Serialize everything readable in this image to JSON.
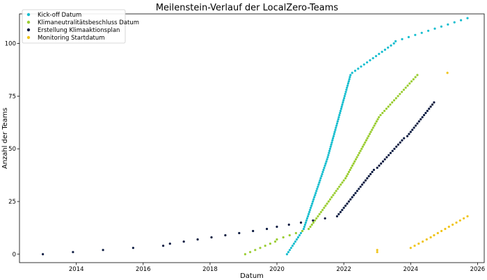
{
  "chart_data": {
    "type": "scatter",
    "title": "Meilenstein-Verlauf der LocalZero-Teams",
    "xlabel": "Datum",
    "ylabel": "Anzahl der Teams",
    "xlim": [
      2012.3,
      2026.2
    ],
    "ylim": [
      -4,
      114
    ],
    "x_ticks": [
      2014,
      2016,
      2018,
      2020,
      2022,
      2024,
      2026
    ],
    "y_ticks": [
      0,
      25,
      50,
      75,
      100
    ],
    "legend_position": "top-left",
    "series": [
      {
        "name": "Kick-off Datum",
        "color": "#17becf",
        "segments": [
          {
            "x0": 2020.3,
            "y0": 0,
            "x1": 2020.8,
            "y1": 12,
            "n": 13
          },
          {
            "x0": 2020.82,
            "y0": 13,
            "x1": 2021.5,
            "y1": 45,
            "n": 33
          },
          {
            "x0": 2021.52,
            "y0": 46,
            "x1": 2022.2,
            "y1": 85,
            "n": 40
          },
          {
            "x0": 2022.25,
            "y0": 86,
            "x1": 2023.5,
            "y1": 100,
            "n": 15
          },
          {
            "x0": 2023.55,
            "y0": 101,
            "x1": 2025.7,
            "y1": 112,
            "n": 12
          }
        ]
      },
      {
        "name": "Klimaneutralitätsbeschluss Datum",
        "color": "#9acd32",
        "segments": [
          {
            "x0": 2019.05,
            "y0": 0,
            "x1": 2019.95,
            "y1": 6,
            "n": 7
          },
          {
            "x0": 2020.0,
            "y0": 7,
            "x1": 2020.95,
            "y1": 12,
            "n": 6
          },
          {
            "x0": 2021.0,
            "y0": 13,
            "x1": 2022.0,
            "y1": 35,
            "n": 23
          },
          {
            "x0": 2022.05,
            "y0": 36,
            "x1": 2023.05,
            "y1": 65,
            "n": 30
          },
          {
            "x0": 2023.1,
            "y0": 66,
            "x1": 2024.2,
            "y1": 85,
            "n": 20
          }
        ]
      },
      {
        "name": "Erstellung Klimaaktionsplan",
        "color": "#0b1a40",
        "segments": [
          {
            "x0": 2013.0,
            "y0": 0,
            "x1": 2016.6,
            "y1": 4,
            "n": 5
          },
          {
            "x0": 2016.8,
            "y0": 5,
            "x1": 2019.7,
            "y1": 12,
            "n": 8
          },
          {
            "x0": 2020.0,
            "y0": 13,
            "x1": 2021.8,
            "y1": 18,
            "n": 6
          },
          {
            "x0": 2021.85,
            "y0": 19,
            "x1": 2022.9,
            "y1": 40,
            "n": 22
          },
          {
            "x0": 2023.0,
            "y0": 41,
            "x1": 2023.8,
            "y1": 55,
            "n": 15
          },
          {
            "x0": 2023.9,
            "y0": 56,
            "x1": 2024.7,
            "y1": 72,
            "n": 17
          }
        ]
      },
      {
        "name": "Monitoring Startdatum",
        "color": "#f0c419",
        "segments": [
          {
            "x0": 2023.0,
            "y0": 1,
            "x1": 2023.0,
            "y1": 2,
            "n": 2
          },
          {
            "x0": 2024.0,
            "y0": 3,
            "x1": 2024.6,
            "y1": 8,
            "n": 6
          },
          {
            "x0": 2024.7,
            "y0": 9,
            "x1": 2025.7,
            "y1": 18,
            "n": 10
          },
          {
            "x0": 2025.1,
            "y0": 86,
            "x1": 2025.1,
            "y1": 86,
            "n": 1
          }
        ]
      }
    ]
  }
}
